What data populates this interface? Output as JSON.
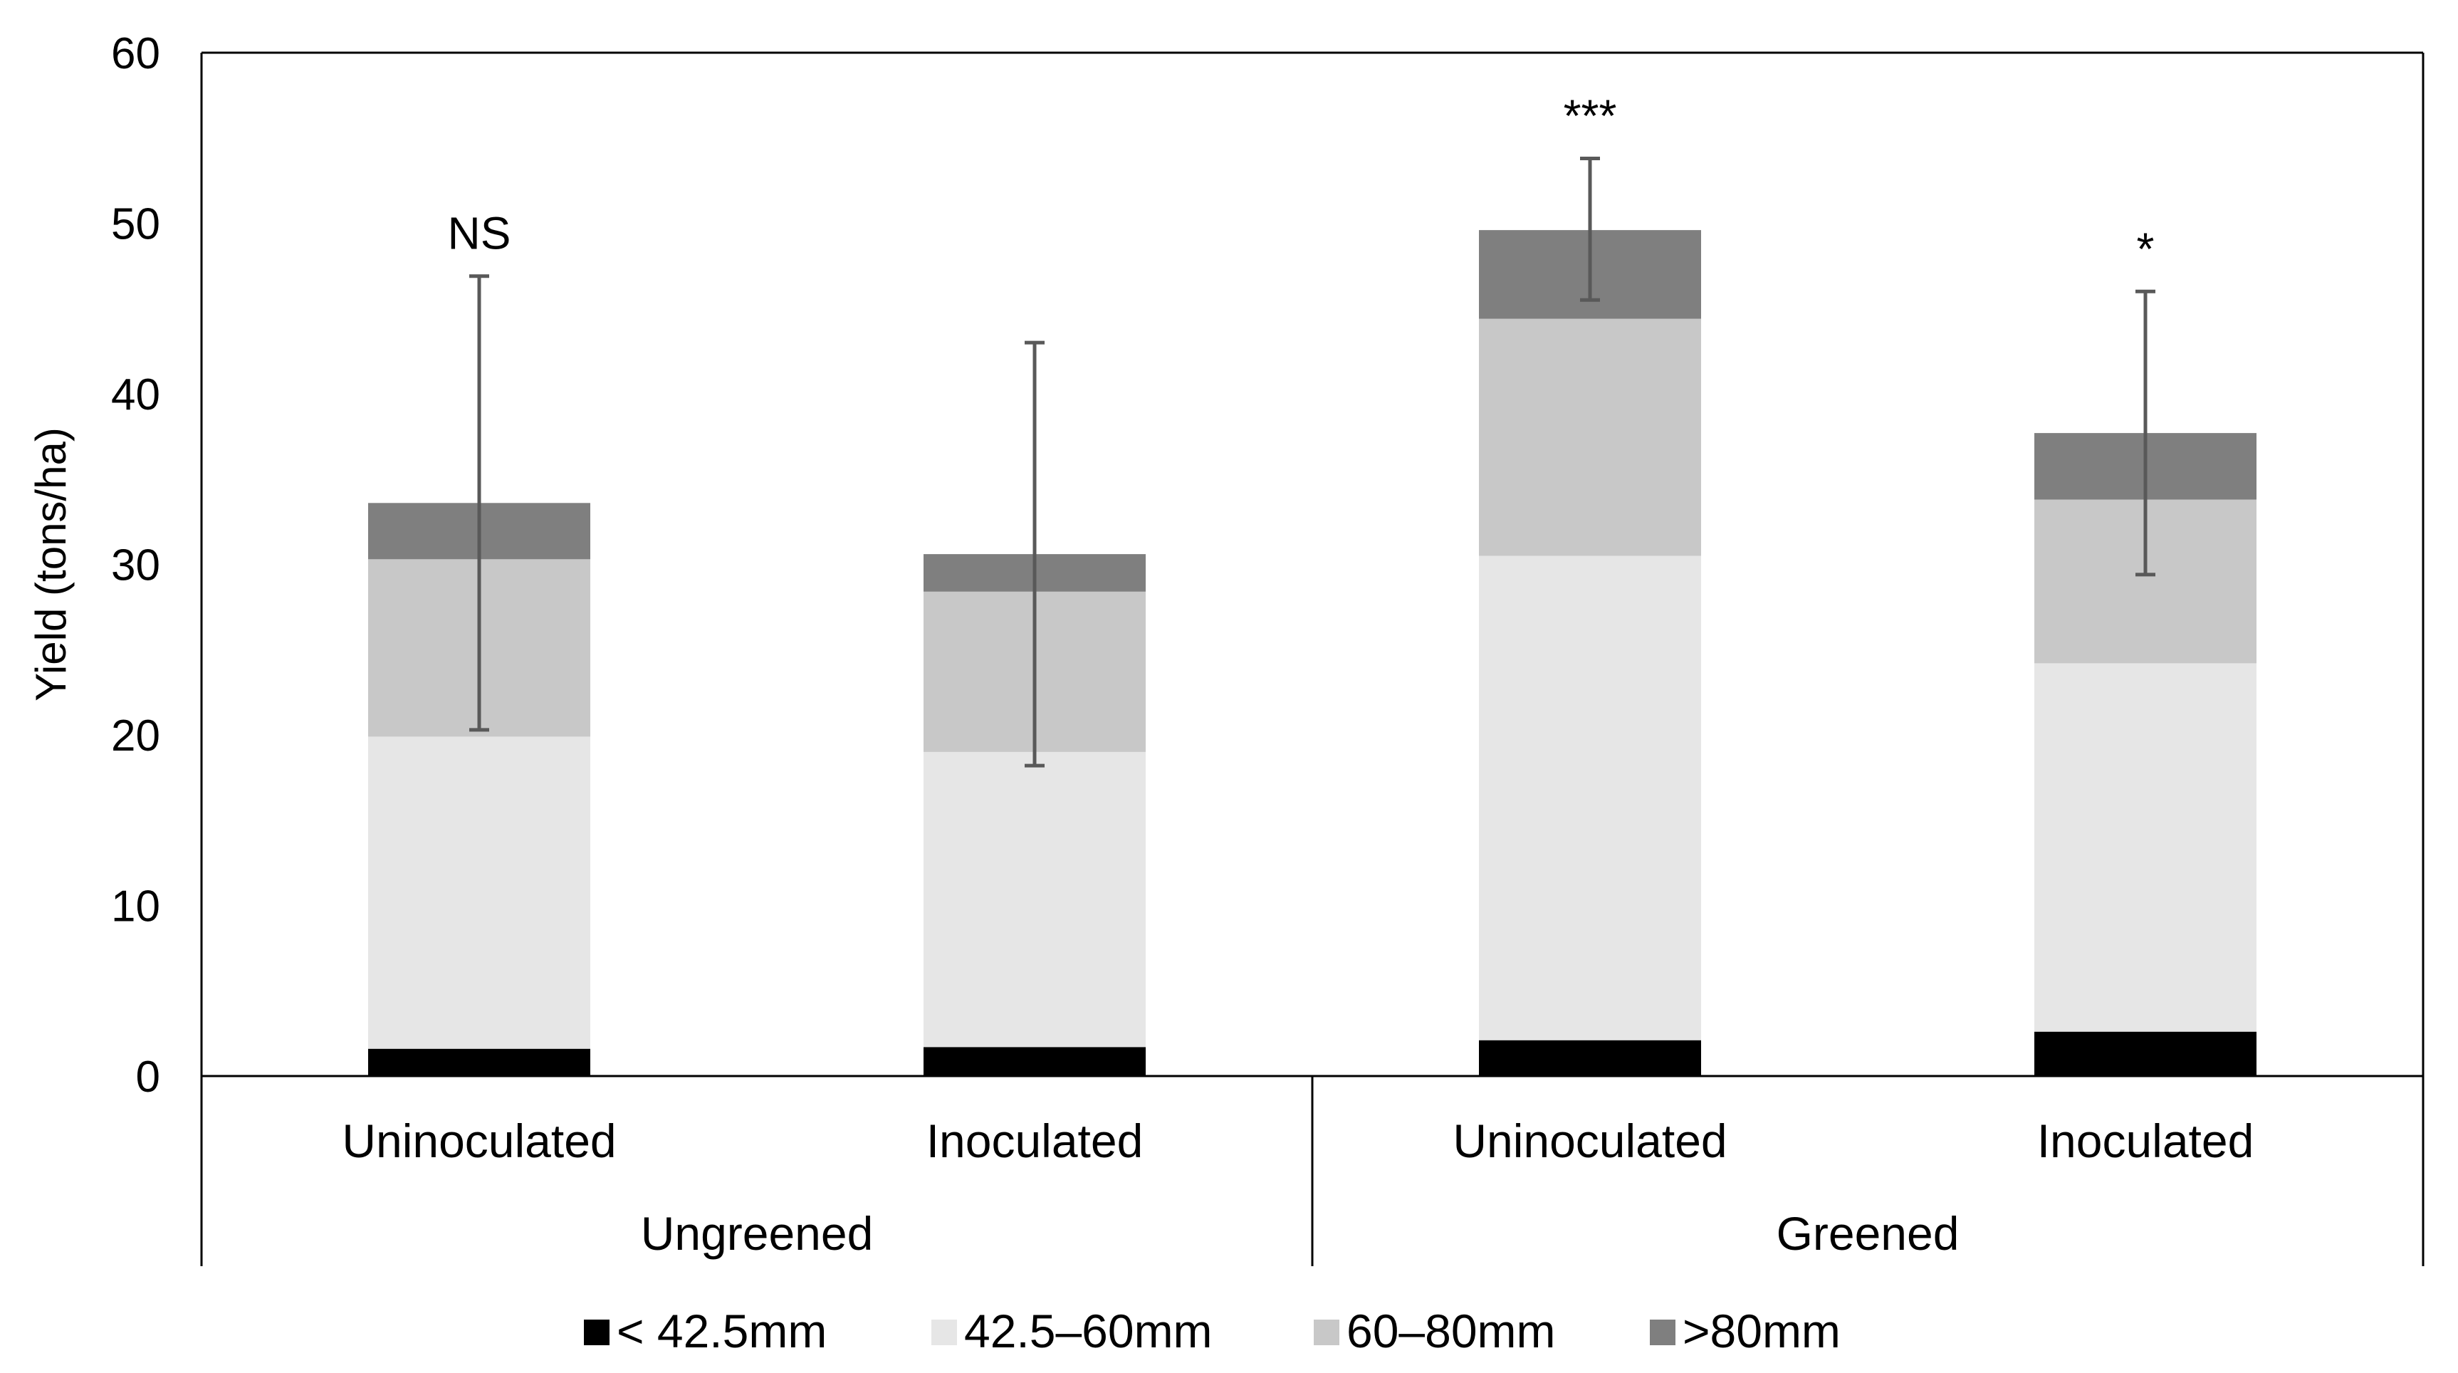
{
  "chart_data": {
    "type": "bar",
    "stacked": true,
    "title": "",
    "xlabel": "",
    "ylabel": "Yield (tons/ha)",
    "ylim": [
      0,
      60
    ],
    "yticks": [
      0,
      10,
      20,
      30,
      40,
      50,
      60
    ],
    "grid": false,
    "legend_position": "bottom",
    "groups": [
      {
        "name": "Ungreened",
        "categories": [
          "Uninoculated",
          "Inoculated"
        ]
      },
      {
        "name": "Greened",
        "categories": [
          "Uninoculated",
          "Inoculated"
        ]
      }
    ],
    "categories": [
      "Uninoculated",
      "Inoculated",
      "Uninoculated",
      "Inoculated"
    ],
    "series": [
      {
        "name": "< 42.5mm",
        "color": "#000000",
        "values": [
          1.6,
          1.7,
          2.1,
          2.6
        ]
      },
      {
        "name": "42.5–60mm",
        "color": "#e6e6e6",
        "values": [
          18.3,
          17.3,
          28.4,
          21.6
        ]
      },
      {
        "name": "60–80mm",
        "color": "#c8c8c8",
        "values": [
          10.4,
          9.4,
          13.9,
          9.6
        ]
      },
      {
        "name": ">80mm",
        "color": "#7f7f7f",
        "values": [
          3.3,
          2.2,
          5.2,
          3.9
        ]
      }
    ],
    "error_bars": [
      {
        "center": 33.6,
        "low": 20.3,
        "high": 46.9
      },
      {
        "center": 30.6,
        "low": 18.2,
        "high": 43.0
      },
      {
        "center": 49.6,
        "low": 45.5,
        "high": 53.8
      },
      {
        "center": 37.7,
        "low": 29.4,
        "high": 46.0
      }
    ],
    "significance": [
      "NS",
      "",
      "***",
      "*"
    ]
  }
}
